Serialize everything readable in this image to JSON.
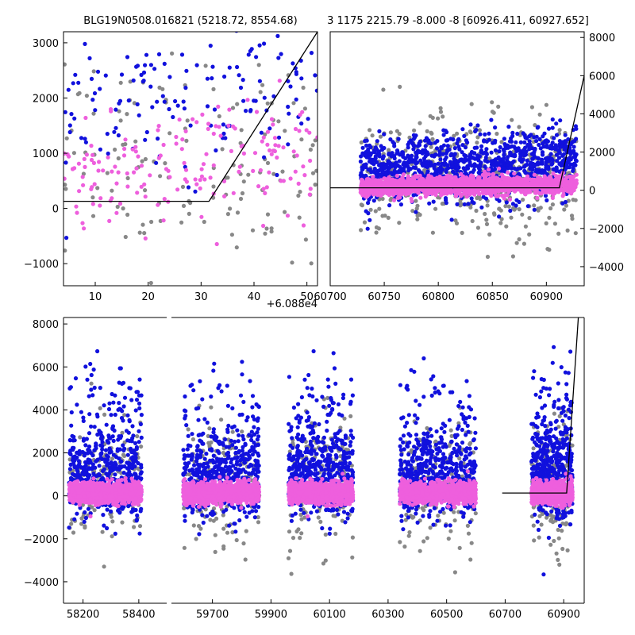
{
  "title_left": "BLG19N0508.016821 (5218.72, 8554.68)",
  "title_right": "3 1175 2215.79 -8.000 -8 [60926.411, 60927.652]",
  "colors": {
    "gray": "#888888",
    "blue": "#1111dd",
    "pink": "#ee5fdd",
    "model": "#000000"
  },
  "chart_data": [
    {
      "id": "top-left",
      "type": "scatter",
      "title": "BLG19N0508.016821 (5218.72, 8554.68)",
      "x_offset_label": "+6.088e4",
      "xlim": [
        4,
        52
      ],
      "ylim": [
        -1400,
        3200
      ],
      "xticks": [
        10,
        20,
        30,
        40,
        50
      ],
      "xtick_labels": [
        "10",
        "20",
        "30",
        "40",
        "50"
      ],
      "yticks": [
        -1000,
        0,
        1000,
        2000,
        3000
      ],
      "ytick_labels": [
        "−1000",
        "0",
        "1000",
        "2000",
        "3000"
      ],
      "yaxis_side": "left",
      "model": {
        "x": [
          4,
          31.5,
          52
        ],
        "y": [
          130,
          130,
          3200
        ]
      },
      "series": [
        {
          "name": "gray",
          "color": "#888888",
          "count": 140,
          "x_range": [
            4,
            52
          ],
          "center": 700,
          "spread": 900,
          "trend": 0.5
        },
        {
          "name": "blue",
          "color": "#1111dd",
          "count": 150,
          "x_range": [
            4,
            52
          ],
          "center": 1900,
          "spread": 700,
          "trend": 0.2
        },
        {
          "name": "pink",
          "color": "#ee5fdd",
          "count": 170,
          "x_range": [
            4,
            52
          ],
          "center": 500,
          "spread": 500,
          "trend": 1.0
        }
      ]
    },
    {
      "id": "top-right",
      "type": "scatter",
      "title": "3 1175 2215.79 -8.000 -8 [60926.411, 60927.652]",
      "xlim": [
        60700,
        60935
      ],
      "ylim": [
        -5000,
        8300
      ],
      "xticks": [
        60700,
        60750,
        60800,
        60850,
        60900
      ],
      "xtick_labels": [
        "60700",
        "60750",
        "60800",
        "60850",
        "60900"
      ],
      "yticks": [
        -4000,
        -2000,
        0,
        2000,
        4000,
        6000,
        8000
      ],
      "ytick_labels": [
        "−4000",
        "−2000",
        "0",
        "2000",
        "4000",
        "6000",
        "8000"
      ],
      "yaxis_side": "right",
      "model": {
        "x": [
          60700,
          60912,
          60935
        ],
        "y": [
          130,
          130,
          6000
        ]
      },
      "series": [
        {
          "name": "gray",
          "color": "#888888",
          "count": 500,
          "x_range": [
            60728,
            60928
          ],
          "center": 600,
          "spread": 1500,
          "trend": 0.5
        },
        {
          "name": "blue",
          "color": "#1111dd",
          "count": 1100,
          "x_range": [
            60728,
            60928
          ],
          "center": 900,
          "spread": 900,
          "trend": 0.6
        },
        {
          "name": "pink",
          "color": "#ee5fdd",
          "count": 1700,
          "x_range": [
            60728,
            60928
          ],
          "center": 150,
          "spread": 230,
          "trend": 1.2
        }
      ]
    },
    {
      "id": "bottom-broken",
      "type": "scatter",
      "title": "",
      "ylim": [
        -5000,
        8300
      ],
      "yticks": [
        -4000,
        -2000,
        0,
        2000,
        4000,
        6000,
        8000
      ],
      "ytick_labels": [
        "−4000",
        "−2000",
        "0",
        "2000",
        "4000",
        "6000",
        "8000"
      ],
      "yaxis_side": "left",
      "segments": [
        {
          "xlim": [
            58130,
            58500
          ],
          "xticks": [
            58200,
            58400
          ],
          "xtick_labels": [
            "58200",
            "58400"
          ],
          "data_range": [
            58150,
            58410
          ]
        },
        {
          "xlim": [
            59560,
            60970
          ],
          "xticks": [
            59700,
            59900,
            60100,
            60300,
            60500,
            60700,
            60900
          ],
          "xtick_labels": [
            "59700",
            "59900",
            "60100",
            "60300",
            "60500",
            "60700",
            "60900"
          ],
          "clusters": [
            [
              59600,
              59860
            ],
            [
              59960,
              60180
            ],
            [
              60340,
              60600
            ],
            [
              60790,
              60930
            ]
          ]
        }
      ],
      "model": {
        "x": [
          60690,
          60910,
          60950
        ],
        "y": [
          130,
          130,
          8300
        ]
      },
      "series": [
        {
          "name": "gray",
          "color": "#888888",
          "center": 600,
          "spread": 1400
        },
        {
          "name": "blue",
          "color": "#1111dd",
          "center": 900,
          "spread": 950
        },
        {
          "name": "pink",
          "color": "#ee5fdd",
          "center": 150,
          "spread": 230
        }
      ]
    }
  ]
}
